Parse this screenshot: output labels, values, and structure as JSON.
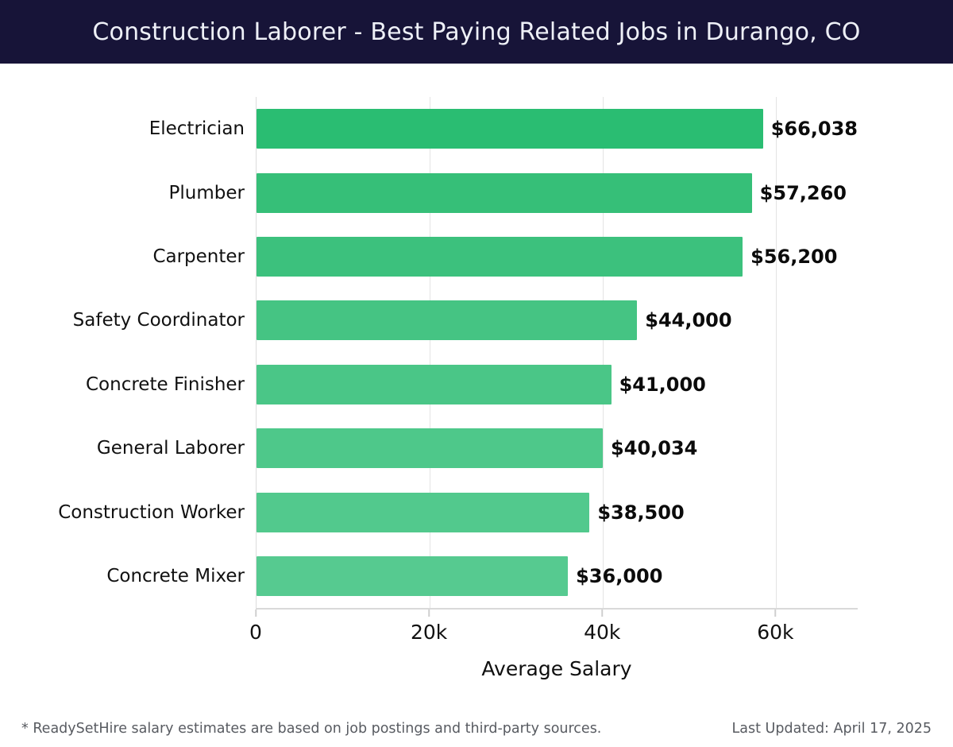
{
  "header": {
    "title": "Construction Laborer - Best Paying Related Jobs in Durango, CO"
  },
  "chart_data": {
    "type": "bar",
    "orientation": "horizontal",
    "title": "Construction Laborer - Best Paying Related Jobs in Durango, CO",
    "categories": [
      "Electrician",
      "Plumber",
      "Carpenter",
      "Safety Coordinator",
      "Concrete Finisher",
      "General Laborer",
      "Construction Worker",
      "Concrete Mixer"
    ],
    "values": [
      66038,
      57260,
      56200,
      44000,
      41000,
      40034,
      38500,
      36000
    ],
    "value_labels": [
      "$66,038",
      "$57,260",
      "$56,200",
      "$44,000",
      "$41,000",
      "$40,034",
      "$38,500",
      "$36,000"
    ],
    "bar_colors": [
      "#2abd72",
      "#36bf78",
      "#3cc17d",
      "#45c483",
      "#4ac687",
      "#4ec88a",
      "#52c98d",
      "#56ca90"
    ],
    "xlabel": "Average Salary",
    "ylabel": "",
    "xlim": [
      0,
      69500
    ],
    "x_ticks": [
      {
        "value": 0,
        "label": "0"
      },
      {
        "value": 20000,
        "label": "20k"
      },
      {
        "value": 40000,
        "label": "40k"
      },
      {
        "value": 60000,
        "label": "60k"
      }
    ],
    "grid": "vertical",
    "legend": "none"
  },
  "footer": {
    "note": "* ReadySetHire salary estimates are based on job postings and third-party sources.",
    "last_updated": "Last Updated: April 17, 2025"
  },
  "colors": {
    "header_bg": "#171438",
    "header_text": "#eef0f7",
    "gridline": "#e4e4e4",
    "axis_line": "#d9d9d9",
    "label_text": "#111111",
    "footer_text": "#585b61"
  }
}
